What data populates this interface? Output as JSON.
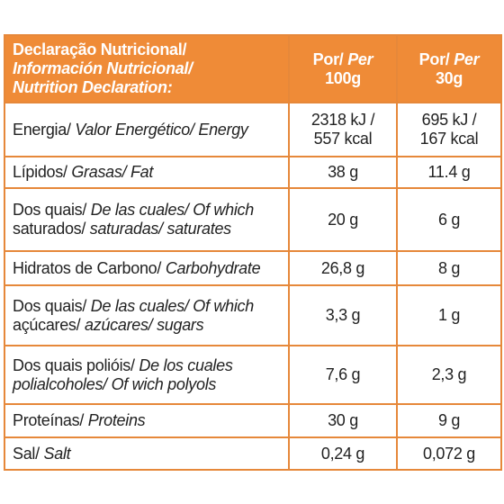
{
  "header": {
    "title_lines": [
      {
        "regular": "Declaração Nutricional/"
      },
      {
        "italic": "Información Nutricional/"
      },
      {
        "italic": "Nutrition Declaration:"
      }
    ],
    "columns": [
      {
        "regular": "Por/",
        "italic": "Per",
        "amount": "100g"
      },
      {
        "regular": "Por/",
        "italic": "Per",
        "amount": "30g"
      }
    ]
  },
  "rows": [
    {
      "label": [
        {
          "regular": "Energia/",
          "italic": "Valor Energético/ Energy"
        }
      ],
      "values": [
        [
          "2318 kJ /",
          "557 kcal"
        ],
        [
          "695 kJ /",
          "167 kcal"
        ]
      ]
    },
    {
      "label": [
        {
          "regular": "Lípidos/",
          "italic": "Grasas/ Fat"
        }
      ],
      "values": [
        [
          "38 g"
        ],
        [
          "11.4 g"
        ]
      ]
    },
    {
      "label": [
        {
          "regular": "Dos quais/",
          "italic": "De las cuales/ Of which"
        },
        {
          "regular": "saturados/",
          "italic": "saturadas/ saturates"
        }
      ],
      "values": [
        [
          "20 g"
        ],
        [
          "6 g"
        ]
      ]
    },
    {
      "label": [
        {
          "regular": "Hidratos de Carbono/",
          "italic": "Carbohydrate"
        }
      ],
      "values": [
        [
          "26,8 g"
        ],
        [
          "8 g"
        ]
      ]
    },
    {
      "label": [
        {
          "regular": "Dos quais/",
          "italic": "De las cuales/ Of which"
        },
        {
          "regular": "açúcares/",
          "italic": "azúcares/ sugars"
        }
      ],
      "values": [
        [
          "3,3 g"
        ],
        [
          "1 g"
        ]
      ]
    },
    {
      "label": [
        {
          "regular": "Dos quais polióis/",
          "italic": "De los cuales"
        },
        {
          "italic": "polialcoholes/ Of wich polyols"
        }
      ],
      "values": [
        [
          "7,6 g"
        ],
        [
          "2,3 g"
        ]
      ]
    },
    {
      "label": [
        {
          "regular": "Proteínas/",
          "italic": "Proteins"
        }
      ],
      "values": [
        [
          "30 g"
        ],
        [
          "9 g"
        ]
      ]
    },
    {
      "label": [
        {
          "regular": "Sal/",
          "italic": "Salt"
        }
      ],
      "values": [
        [
          "0,24 g"
        ],
        [
          "0,072 g"
        ]
      ]
    }
  ]
}
